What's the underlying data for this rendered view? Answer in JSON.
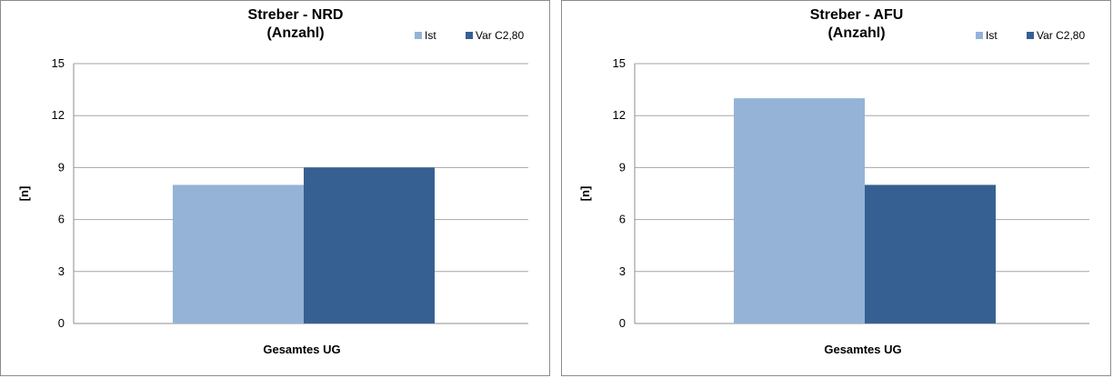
{
  "chart_data": [
    {
      "type": "bar",
      "title": [
        "Streber - NRD",
        "(Anzahl)"
      ],
      "ylabel": "[n]",
      "categories": [
        "Gesamtes UG"
      ],
      "ylim": [
        0,
        15
      ],
      "yticks": [
        0,
        3,
        6,
        9,
        12,
        15
      ],
      "grid": true,
      "legend_position": "top-right",
      "series": [
        {
          "name": "Ist",
          "values": [
            8
          ],
          "color": "#95b3d7"
        },
        {
          "name": "Var C2,80",
          "values": [
            9
          ],
          "color": "#366092"
        }
      ]
    },
    {
      "type": "bar",
      "title": [
        "Streber - AFU",
        "(Anzahl)"
      ],
      "ylabel": "[n]",
      "categories": [
        "Gesamtes UG"
      ],
      "ylim": [
        0,
        15
      ],
      "yticks": [
        0,
        3,
        6,
        9,
        12,
        15
      ],
      "grid": true,
      "legend_position": "top-right",
      "series": [
        {
          "name": "Ist",
          "values": [
            13
          ],
          "color": "#95b3d7"
        },
        {
          "name": "Var C2,80",
          "values": [
            8
          ],
          "color": "#366092"
        }
      ]
    }
  ]
}
